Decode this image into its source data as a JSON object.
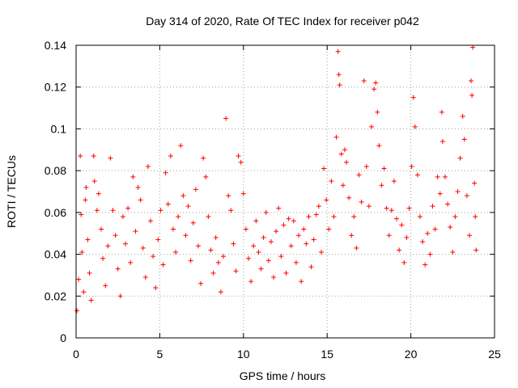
{
  "chart_data": {
    "type": "scatter",
    "title": "Day 314 of 2020, Rate Of TEC Index for receiver p042",
    "xlabel": "GPS time / hours",
    "ylabel": "ROTI / TECUs",
    "xlim": [
      0,
      25
    ],
    "ylim": [
      0,
      0.14
    ],
    "xticks": [
      0,
      5,
      10,
      15,
      20,
      25
    ],
    "xtick_labels": [
      "0",
      "5",
      "10",
      "15",
      "20",
      "25"
    ],
    "yticks": [
      0,
      0.02,
      0.04,
      0.06,
      0.08,
      0.1,
      0.12,
      0.14
    ],
    "ytick_labels": [
      "0",
      "0.02",
      "0.04",
      "0.06",
      "0.08",
      "0.1",
      "0.12",
      "0.14"
    ],
    "grid": true,
    "marker": "+",
    "color": "#ff0000",
    "series": [
      {
        "name": "ROTI",
        "points": [
          [
            0.05,
            0.013
          ],
          [
            0.15,
            0.028
          ],
          [
            0.25,
            0.087
          ],
          [
            0.3,
            0.059
          ],
          [
            0.35,
            0.041
          ],
          [
            0.45,
            0.022
          ],
          [
            0.55,
            0.066
          ],
          [
            0.6,
            0.072
          ],
          [
            0.7,
            0.047
          ],
          [
            0.8,
            0.031
          ],
          [
            0.9,
            0.018
          ],
          [
            1.05,
            0.087
          ],
          [
            1.1,
            0.075
          ],
          [
            1.25,
            0.061
          ],
          [
            1.35,
            0.069
          ],
          [
            1.5,
            0.052
          ],
          [
            1.6,
            0.038
          ],
          [
            1.75,
            0.025
          ],
          [
            1.9,
            0.044
          ],
          [
            2.05,
            0.086
          ],
          [
            2.2,
            0.061
          ],
          [
            2.35,
            0.049
          ],
          [
            2.5,
            0.033
          ],
          [
            2.65,
            0.02
          ],
          [
            2.8,
            0.058
          ],
          [
            2.95,
            0.045
          ],
          [
            3.1,
            0.062
          ],
          [
            3.25,
            0.036
          ],
          [
            3.4,
            0.077
          ],
          [
            3.55,
            0.051
          ],
          [
            3.7,
            0.072
          ],
          [
            3.85,
            0.066
          ],
          [
            4.0,
            0.043
          ],
          [
            4.15,
            0.029
          ],
          [
            4.3,
            0.082
          ],
          [
            4.45,
            0.056
          ],
          [
            4.6,
            0.039
          ],
          [
            4.75,
            0.024
          ],
          [
            4.9,
            0.047
          ],
          [
            5.05,
            0.061
          ],
          [
            5.2,
            0.035
          ],
          [
            5.35,
            0.079
          ],
          [
            5.5,
            0.064
          ],
          [
            5.65,
            0.087
          ],
          [
            5.8,
            0.052
          ],
          [
            5.95,
            0.041
          ],
          [
            6.1,
            0.058
          ],
          [
            6.25,
            0.092
          ],
          [
            6.4,
            0.068
          ],
          [
            6.55,
            0.049
          ],
          [
            6.7,
            0.063
          ],
          [
            6.85,
            0.037
          ],
          [
            7.0,
            0.055
          ],
          [
            7.15,
            0.071
          ],
          [
            7.3,
            0.044
          ],
          [
            7.45,
            0.026
          ],
          [
            7.6,
            0.086
          ],
          [
            7.75,
            0.077
          ],
          [
            7.9,
            0.058
          ],
          [
            8.05,
            0.042
          ],
          [
            8.2,
            0.031
          ],
          [
            8.35,
            0.048
          ],
          [
            8.5,
            0.036
          ],
          [
            8.65,
            0.022
          ],
          [
            8.8,
            0.039
          ],
          [
            8.95,
            0.105
          ],
          [
            9.1,
            0.068
          ],
          [
            9.25,
            0.061
          ],
          [
            9.4,
            0.045
          ],
          [
            9.55,
            0.032
          ],
          [
            9.7,
            0.087
          ],
          [
            9.85,
            0.084
          ],
          [
            10.0,
            0.069
          ],
          [
            10.15,
            0.052
          ],
          [
            10.3,
            0.038
          ],
          [
            10.45,
            0.027
          ],
          [
            10.6,
            0.044
          ],
          [
            10.75,
            0.056
          ],
          [
            10.9,
            0.041
          ],
          [
            11.05,
            0.033
          ],
          [
            11.2,
            0.048
          ],
          [
            11.35,
            0.06
          ],
          [
            11.5,
            0.037
          ],
          [
            11.65,
            0.046
          ],
          [
            11.8,
            0.029
          ],
          [
            11.95,
            0.051
          ],
          [
            12.1,
            0.062
          ],
          [
            12.25,
            0.039
          ],
          [
            12.4,
            0.054
          ],
          [
            12.55,
            0.031
          ],
          [
            12.7,
            0.057
          ],
          [
            12.85,
            0.044
          ],
          [
            13.0,
            0.056
          ],
          [
            13.15,
            0.036
          ],
          [
            13.3,
            0.049
          ],
          [
            13.45,
            0.027
          ],
          [
            13.6,
            0.052
          ],
          [
            13.75,
            0.045
          ],
          [
            13.9,
            0.058
          ],
          [
            14.05,
            0.034
          ],
          [
            14.2,
            0.047
          ],
          [
            14.35,
            0.059
          ],
          [
            14.5,
            0.063
          ],
          [
            14.65,
            0.041
          ],
          [
            14.8,
            0.081
          ],
          [
            14.95,
            0.066
          ],
          [
            15.1,
            0.052
          ],
          [
            15.25,
            0.075
          ],
          [
            15.4,
            0.058
          ],
          [
            15.55,
            0.096
          ],
          [
            15.65,
            0.137
          ],
          [
            15.7,
            0.126
          ],
          [
            15.75,
            0.121
          ],
          [
            15.85,
            0.088
          ],
          [
            15.95,
            0.073
          ],
          [
            16.05,
            0.09
          ],
          [
            16.15,
            0.084
          ],
          [
            16.3,
            0.067
          ],
          [
            16.45,
            0.049
          ],
          [
            16.6,
            0.058
          ],
          [
            16.75,
            0.043
          ],
          [
            16.9,
            0.078
          ],
          [
            17.05,
            0.065
          ],
          [
            17.2,
            0.123
          ],
          [
            17.35,
            0.082
          ],
          [
            17.5,
            0.063
          ],
          [
            17.65,
            0.101
          ],
          [
            17.8,
            0.119
          ],
          [
            17.9,
            0.122
          ],
          [
            18.0,
            0.108
          ],
          [
            18.1,
            0.092
          ],
          [
            18.25,
            0.073
          ],
          [
            18.4,
            0.081
          ],
          [
            18.55,
            0.062
          ],
          [
            18.7,
            0.049
          ],
          [
            18.85,
            0.061
          ],
          [
            19.0,
            0.075
          ],
          [
            19.15,
            0.057
          ],
          [
            19.3,
            0.042
          ],
          [
            19.45,
            0.054
          ],
          [
            19.6,
            0.036
          ],
          [
            19.75,
            0.048
          ],
          [
            19.9,
            0.062
          ],
          [
            20.05,
            0.082
          ],
          [
            20.15,
            0.115
          ],
          [
            20.25,
            0.101
          ],
          [
            20.4,
            0.078
          ],
          [
            20.55,
            0.058
          ],
          [
            20.7,
            0.046
          ],
          [
            20.85,
            0.035
          ],
          [
            21.0,
            0.05
          ],
          [
            21.15,
            0.04
          ],
          [
            21.3,
            0.063
          ],
          [
            21.45,
            0.052
          ],
          [
            21.6,
            0.077
          ],
          [
            21.75,
            0.069
          ],
          [
            21.85,
            0.108
          ],
          [
            21.9,
            0.094
          ],
          [
            22.05,
            0.077
          ],
          [
            22.2,
            0.064
          ],
          [
            22.35,
            0.053
          ],
          [
            22.5,
            0.041
          ],
          [
            22.65,
            0.058
          ],
          [
            22.8,
            0.07
          ],
          [
            22.95,
            0.086
          ],
          [
            23.1,
            0.106
          ],
          [
            23.2,
            0.095
          ],
          [
            23.35,
            0.068
          ],
          [
            23.5,
            0.049
          ],
          [
            23.6,
            0.123
          ],
          [
            23.65,
            0.116
          ],
          [
            23.7,
            0.139
          ],
          [
            23.8,
            0.074
          ],
          [
            23.85,
            0.058
          ],
          [
            23.9,
            0.042
          ]
        ]
      }
    ]
  }
}
